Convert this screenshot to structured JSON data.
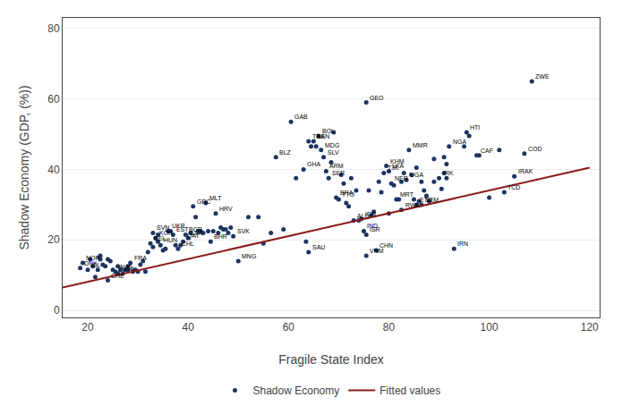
{
  "chart_data": {
    "type": "scatter",
    "xlabel": "Fragile State Index",
    "ylabel": "Shadow Economy (GDP, (%))",
    "xlim": [
      15,
      122
    ],
    "ylim": [
      -2,
      83
    ],
    "xticks": [
      20,
      40,
      60,
      80,
      100,
      120
    ],
    "yticks": [
      0,
      20,
      40,
      60,
      80
    ],
    "grid": "y",
    "legend": "bottom",
    "series": [
      {
        "name": "Shadow Economy",
        "type": "scatter",
        "marker": "circle",
        "color": "#1C3461",
        "x": [
          18.5,
          19.0,
          20.0,
          20.5,
          21.0,
          21.5,
          22.0,
          22.3,
          22.5,
          23.0,
          23.5,
          24.0,
          24.5,
          25.0,
          25.5,
          26.0,
          26.5,
          27.0,
          27.5,
          28.0,
          28.5,
          29.0,
          29.5,
          30.0,
          30.5,
          31.0,
          31.5,
          32.0,
          32.5,
          33.0,
          33.5,
          34.0,
          34.5,
          35.0,
          35.5,
          36.0,
          36.5,
          37.0,
          37.5,
          38.0,
          38.5,
          39.0,
          39.5,
          40.0,
          40.5,
          41.0,
          41.5,
          42.0,
          42.5,
          43.0,
          43.5,
          44.0,
          44.5,
          45.0,
          45.5,
          46.0,
          46.5,
          47.0,
          47.5,
          48.0,
          48.5,
          49.0,
          50.0,
          52.0,
          54.0,
          56.5,
          57.5,
          60.5,
          61.5,
          63.0,
          64.0,
          64.5,
          65.0,
          65.5,
          66.0,
          66.5,
          67.0,
          67.5,
          68.0,
          68.5,
          69.0,
          69.5,
          70.0,
          70.5,
          71.0,
          71.5,
          72.0,
          72.5,
          73.0,
          73.5,
          74.0,
          74.5,
          75.0,
          75.5,
          75.5,
          76.0,
          76.5,
          77.0,
          77.5,
          78.0,
          78.5,
          79.0,
          79.5,
          80.0,
          80.5,
          81.0,
          81.5,
          82.0,
          82.5,
          83.0,
          83.5,
          84.0,
          84.5,
          85.0,
          85.5,
          86.0,
          86.5,
          87.0,
          87.5,
          88.0,
          89.0,
          90.0,
          90.5,
          91.0,
          91.5,
          92.0,
          93.0,
          95.5,
          96.0,
          97.5,
          100.0,
          103.0,
          107.0,
          108.5,
          64.0,
          75.5,
          105.0,
          22.5,
          24.0,
          26.0,
          28.0,
          33.0,
          34.0,
          55.0,
          59.0,
          63.5,
          80.0,
          82.5,
          85.5,
          86.5,
          89.0,
          91.0,
          91.5,
          95.0,
          98.0,
          102.0
        ],
        "values": [
          12.0,
          13.5,
          11.5,
          14.5,
          12.5,
          9.5,
          11.5,
          15.0,
          14.5,
          13.0,
          12.5,
          8.5,
          14.0,
          11.5,
          11.0,
          10.5,
          11.5,
          10.5,
          11.5,
          12.5,
          13.5,
          11.0,
          11.5,
          11.0,
          13.0,
          14.0,
          11.0,
          16.5,
          19.0,
          22.0,
          20.5,
          19.5,
          18.5,
          17.0,
          17.5,
          22.5,
          22.5,
          21.5,
          18.5,
          17.5,
          18.5,
          19.5,
          21.5,
          20.5,
          22.0,
          29.5,
          26.5,
          22.5,
          22.5,
          22.0,
          30.5,
          22.5,
          19.5,
          22.5,
          27.5,
          22.0,
          23.5,
          23.0,
          23.0,
          22.0,
          23.5,
          21.0,
          14.0,
          26.5,
          26.5,
          22.0,
          43.5,
          53.5,
          37.5,
          40.0,
          48.0,
          46.5,
          48.0,
          46.5,
          49.5,
          45.5,
          43.5,
          39.5,
          37.5,
          42.0,
          50.5,
          32.0,
          31.5,
          38.5,
          36.0,
          30.5,
          29.5,
          37.5,
          25.5,
          34.0,
          25.5,
          26.0,
          22.5,
          21.5,
          59.0,
          34.0,
          27.0,
          28.0,
          17.0,
          36.5,
          33.5,
          39.0,
          41.0,
          39.5,
          36.0,
          35.5,
          31.5,
          31.5,
          28.5,
          39.0,
          37.0,
          45.5,
          38.5,
          31.5,
          30.0,
          31.0,
          30.0,
          34.0,
          32.5,
          31.0,
          36.5,
          37.5,
          34.5,
          43.5,
          41.5,
          46.5,
          17.5,
          50.5,
          49.5,
          44.0,
          32.0,
          33.5,
          44.5,
          65.0,
          16.5,
          15.5,
          38.0,
          15.5,
          14.5,
          12.5,
          11.5,
          18.0,
          21.5,
          19.0,
          23.0,
          19.5,
          27.5,
          36.5,
          40.5,
          36.5,
          43.0,
          39.0,
          37.5,
          46.5,
          44.0,
          45.5
        ],
        "labels": [
          "DNK",
          "NOR",
          "ISL",
          null,
          null,
          null,
          null,
          null,
          null,
          null,
          null,
          "CHE",
          null,
          null,
          "AUS",
          "USA",
          null,
          null,
          null,
          null,
          "FRA",
          null,
          null,
          null,
          null,
          null,
          null,
          null,
          "BEL",
          "SVN",
          "KOR",
          null,
          "HUN",
          null,
          null,
          "UKR",
          null,
          "EST",
          null,
          "CHL",
          null,
          "QAT",
          "BGR",
          "LVA",
          null,
          "GRC",
          null,
          null,
          null,
          null,
          "MLT",
          null,
          "BHR",
          null,
          "HRV",
          null,
          null,
          null,
          null,
          null,
          null,
          "SVK",
          "MNG",
          null,
          null,
          null,
          "BLZ",
          "GAB",
          null,
          "GHA",
          "THA",
          null,
          "BEN",
          null,
          "BOL",
          "MDG",
          "SLV",
          "ARM",
          "SER",
          null,
          null,
          "BRA",
          "TTO",
          null,
          null,
          null,
          null,
          null,
          "ALG",
          null,
          null,
          "IDN",
          "IND",
          "ISR",
          "GEO",
          null,
          null,
          null,
          "CHN",
          null,
          null,
          "TJK",
          "KHM",
          "LKA",
          "NER",
          null,
          "MRT",
          null,
          "RWA",
          null,
          "UGA",
          "MMR",
          null,
          null,
          "ETH",
          null,
          "YEM",
          null,
          null,
          null,
          null,
          "IRK",
          null,
          null,
          null,
          "NGA",
          "IRN",
          "HTI",
          null,
          "CAF",
          null,
          "TCD",
          "COD",
          "ZWE",
          "SAU",
          "VNM",
          "IRAK",
          null,
          null,
          null,
          null,
          null,
          null,
          null,
          null,
          null,
          null,
          null,
          null,
          null,
          null,
          null,
          null,
          null,
          null,
          null
        ]
      },
      {
        "name": "Fitted values",
        "type": "line",
        "line_style": "solid",
        "color": "#8B1A1A",
        "x": [
          15,
          120
        ],
        "values": [
          6.5,
          40.5
        ]
      }
    ]
  }
}
